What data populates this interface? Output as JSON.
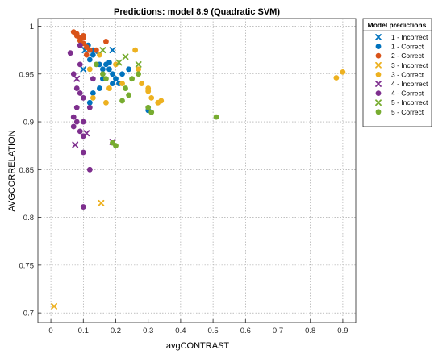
{
  "chart_data": {
    "type": "scatter",
    "title": "Predictions: model 8.9 (Quadratic SVM)",
    "xlabel": "avgCONTRAST",
    "ylabel": "AVGCORRELATION",
    "xlim": [
      -0.04,
      0.94
    ],
    "ylim": [
      0.69,
      1.008
    ],
    "xticks": [
      0,
      0.1,
      0.2,
      0.3,
      0.4,
      0.5,
      0.6,
      0.7,
      0.8,
      0.9
    ],
    "xtick_labels": [
      "0",
      "0.1",
      "0.2",
      "0.3",
      "0.4",
      "0.5",
      "0.6",
      "0.7",
      "0.8",
      "0.9"
    ],
    "yticks": [
      0.7,
      0.75,
      0.8,
      0.85,
      0.9,
      0.95,
      1
    ],
    "ytick_labels": [
      "0.7",
      "0.75",
      "0.8",
      "0.85",
      "0.9",
      "0.95",
      "1"
    ],
    "grid": true,
    "legend": {
      "title": "Model predictions",
      "placement": "outside-right-top"
    },
    "series": [
      {
        "name": "1 - Incorrect",
        "marker": "x",
        "color": "#0072BD",
        "points": [
          [
            0.105,
            0.975
          ],
          [
            0.19,
            0.975
          ],
          [
            0.135,
            0.974
          ],
          [
            0.1,
            0.955
          ]
        ]
      },
      {
        "name": "1 - Correct",
        "marker": "o",
        "color": "#0072BD",
        "points": [
          [
            0.12,
            0.975
          ],
          [
            0.13,
            0.97
          ],
          [
            0.12,
            0.965
          ],
          [
            0.15,
            0.96
          ],
          [
            0.16,
            0.955
          ],
          [
            0.17,
            0.96
          ],
          [
            0.18,
            0.955
          ],
          [
            0.19,
            0.95
          ],
          [
            0.2,
            0.945
          ],
          [
            0.21,
            0.94
          ],
          [
            0.19,
            0.94
          ],
          [
            0.22,
            0.95
          ],
          [
            0.24,
            0.955
          ],
          [
            0.16,
            0.945
          ],
          [
            0.15,
            0.935
          ],
          [
            0.13,
            0.93
          ],
          [
            0.12,
            0.92
          ],
          [
            0.3,
            0.912
          ],
          [
            0.115,
            0.98
          ],
          [
            0.13,
            0.975
          ],
          [
            0.18,
            0.962
          ]
        ]
      },
      {
        "name": "2 - Correct",
        "marker": "o",
        "color": "#D95319",
        "points": [
          [
            0.07,
            0.994
          ],
          [
            0.08,
            0.99
          ],
          [
            0.09,
            0.988
          ],
          [
            0.1,
            0.988
          ],
          [
            0.08,
            0.992
          ],
          [
            0.09,
            0.985
          ],
          [
            0.1,
            0.982
          ],
          [
            0.11,
            0.978
          ],
          [
            0.12,
            0.975
          ],
          [
            0.14,
            0.975
          ],
          [
            0.11,
            0.97
          ],
          [
            0.17,
            0.984
          ],
          [
            0.1,
            0.99
          ]
        ]
      },
      {
        "name": "3 - Incorrect",
        "marker": "x",
        "color": "#EDB120",
        "points": [
          [
            0.01,
            0.707
          ],
          [
            0.155,
            0.815
          ]
        ]
      },
      {
        "name": "3 - Correct",
        "marker": "o",
        "color": "#EDB120",
        "points": [
          [
            0.26,
            0.975
          ],
          [
            0.28,
            0.94
          ],
          [
            0.3,
            0.935
          ],
          [
            0.31,
            0.925
          ],
          [
            0.33,
            0.92
          ],
          [
            0.34,
            0.922
          ],
          [
            0.27,
            0.955
          ],
          [
            0.22,
            0.94
          ],
          [
            0.18,
            0.935
          ],
          [
            0.17,
            0.92
          ],
          [
            0.13,
            0.925
          ],
          [
            0.12,
            0.955
          ],
          [
            0.15,
            0.97
          ],
          [
            0.2,
            0.96
          ],
          [
            0.9,
            0.952
          ],
          [
            0.88,
            0.946
          ],
          [
            0.3,
            0.932
          ]
        ]
      },
      {
        "name": "4 - Incorrect",
        "marker": "x",
        "color": "#7E2F8E",
        "points": [
          [
            0.08,
            0.945
          ],
          [
            0.11,
            0.888
          ],
          [
            0.075,
            0.876
          ],
          [
            0.19,
            0.879
          ]
        ]
      },
      {
        "name": "4 - Correct",
        "marker": "o",
        "color": "#7E2F8E",
        "points": [
          [
            0.06,
            0.972
          ],
          [
            0.07,
            0.95
          ],
          [
            0.08,
            0.935
          ],
          [
            0.09,
            0.93
          ],
          [
            0.1,
            0.925
          ],
          [
            0.08,
            0.915
          ],
          [
            0.07,
            0.905
          ],
          [
            0.08,
            0.9
          ],
          [
            0.1,
            0.9
          ],
          [
            0.09,
            0.89
          ],
          [
            0.1,
            0.885
          ],
          [
            0.07,
            0.895
          ],
          [
            0.12,
            0.915
          ],
          [
            0.13,
            0.945
          ],
          [
            0.12,
            0.85
          ],
          [
            0.1,
            0.868
          ],
          [
            0.1,
            0.811
          ],
          [
            0.09,
            0.96
          ],
          [
            0.09,
            0.98
          ]
        ]
      },
      {
        "name": "5 - Incorrect",
        "marker": "x",
        "color": "#77AC30",
        "points": [
          [
            0.27,
            0.96
          ],
          [
            0.21,
            0.962
          ],
          [
            0.16,
            0.975
          ],
          [
            0.23,
            0.968
          ]
        ]
      },
      {
        "name": "5 - Correct",
        "marker": "o",
        "color": "#77AC30",
        "points": [
          [
            0.51,
            0.905
          ],
          [
            0.3,
            0.915
          ],
          [
            0.31,
            0.91
          ],
          [
            0.27,
            0.95
          ],
          [
            0.25,
            0.945
          ],
          [
            0.24,
            0.928
          ],
          [
            0.2,
            0.875
          ],
          [
            0.19,
            0.878
          ],
          [
            0.23,
            0.935
          ],
          [
            0.16,
            0.95
          ],
          [
            0.14,
            0.96
          ],
          [
            0.22,
            0.922
          ],
          [
            0.17,
            0.945
          ]
        ]
      }
    ]
  }
}
